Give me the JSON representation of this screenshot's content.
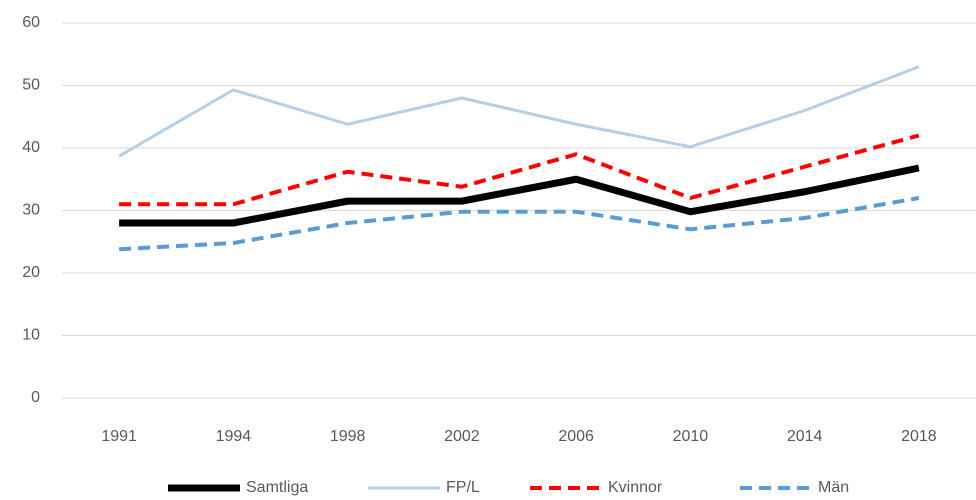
{
  "chart_data": {
    "type": "line",
    "categories": [
      "1991",
      "1994",
      "1998",
      "2002",
      "2006",
      "2010",
      "2014",
      "2018"
    ],
    "series": [
      {
        "name": "Samtliga",
        "color": "#000000",
        "dash": "solid",
        "values": [
          28,
          28,
          31.5,
          31.5,
          35,
          29.8,
          33,
          36.8
        ]
      },
      {
        "name": "FP/L",
        "color": "#b4cfea",
        "dash": "solid",
        "values": [
          38.7,
          49.3,
          43.8,
          48,
          43.8,
          40.2,
          46,
          53
        ]
      },
      {
        "name": "Kvinnor",
        "color": "#ff0000",
        "dash": "dashed",
        "values": [
          31,
          31,
          36.2,
          33.8,
          39,
          32,
          37,
          42
        ]
      },
      {
        "name": "Män",
        "color": "#5b9bd5",
        "dash": "dashed",
        "values": [
          23.8,
          24.8,
          28,
          29.8,
          29.8,
          27,
          28.8,
          32
        ]
      }
    ],
    "ylim": [
      0,
      60
    ],
    "yticks": [
      0,
      10,
      20,
      30,
      40,
      50,
      60
    ],
    "grid": true,
    "legend": "bottom"
  }
}
